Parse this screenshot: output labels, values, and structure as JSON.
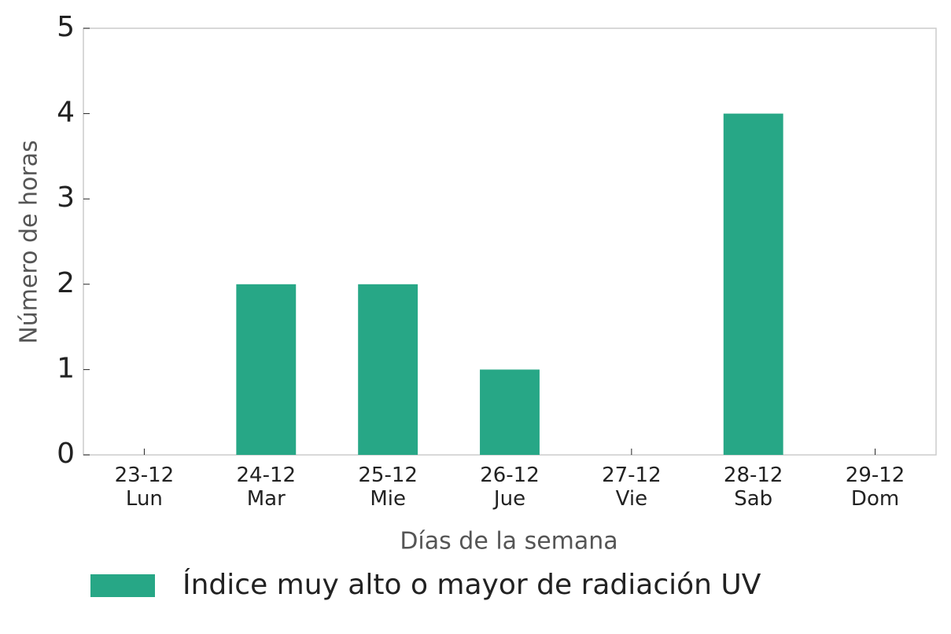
{
  "chart_data": {
    "type": "bar",
    "categories": [
      "23-12\nLun",
      "24-12\nMar",
      "25-12\nMie",
      "26-12\nJue",
      "27-12\nVie",
      "28-12\nSab",
      "29-12\nDom"
    ],
    "series": [
      {
        "name": "Índice muy alto o mayor de radiación UV",
        "color": "#27a786",
        "values": [
          0,
          2,
          2,
          1,
          0,
          4,
          0
        ]
      }
    ],
    "x_label": "Días de la semana",
    "y_label": "Número de horas",
    "ylim": [
      0,
      5
    ],
    "yticks": [
      0,
      1,
      2,
      3,
      4,
      5
    ],
    "grid": false,
    "legend": "bottom"
  }
}
